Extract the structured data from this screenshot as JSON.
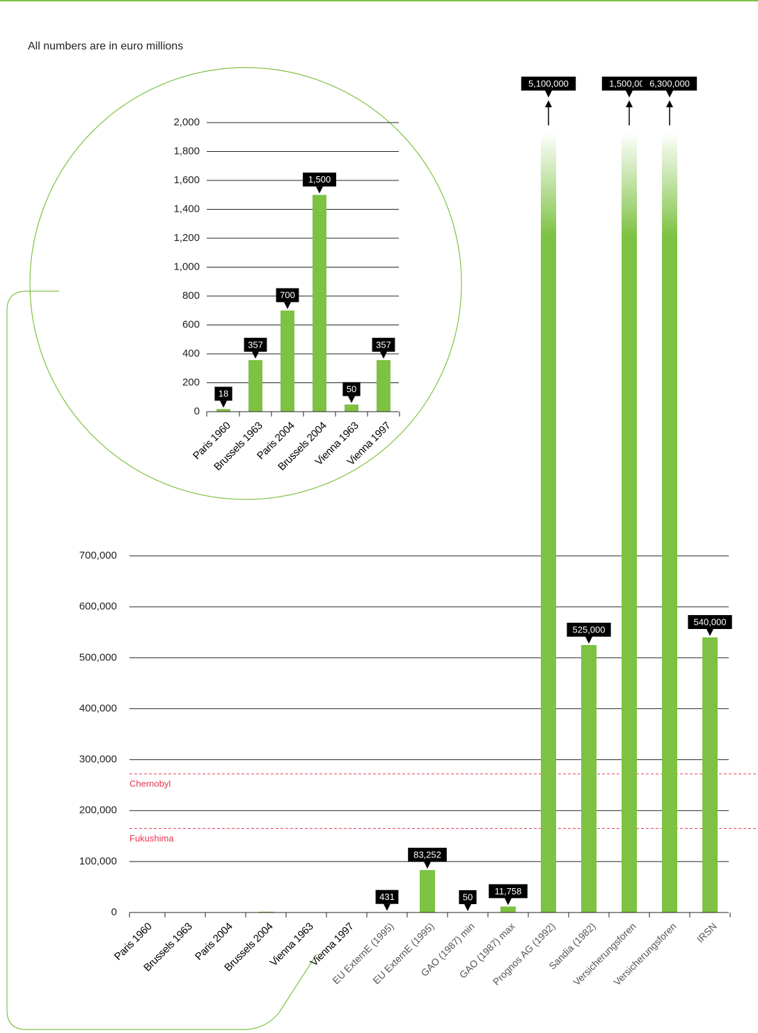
{
  "header": "All numbers are in euro millions",
  "chart_data": [
    {
      "type": "bar",
      "color": "#7dc242",
      "categories": [
        "Paris 1960",
        "Brussels 1963",
        "Paris 2004",
        "Brussels 2004",
        "Vienna 1963",
        "Vienna 1997"
      ],
      "values": [
        18,
        357,
        700,
        1500,
        50,
        357
      ],
      "value_labels": [
        "18",
        "357",
        "700",
        "1,500",
        "50",
        "357"
      ],
      "ylim": [
        0,
        2000
      ],
      "yticks": [
        0,
        200,
        400,
        600,
        800,
        {
          "value": 1000,
          "label": "1,000"
        },
        {
          "value": 1200,
          "label": "1,200"
        },
        {
          "value": 1400,
          "label": "1,400"
        },
        {
          "value": 1600,
          "label": "1,600"
        },
        {
          "value": 1800,
          "label": "1,800"
        },
        {
          "value": 2000,
          "label": "2,000"
        }
      ],
      "grid": true
    },
    {
      "type": "bar",
      "color": "#7dc242",
      "categories": [
        "Paris 1960",
        "Brussels 1963",
        "Paris 2004",
        "Brussels 2004",
        "Vienna 1963",
        "Vienna 1997",
        "EU ExternE (1995)",
        "EU ExternE (1995)",
        "GAO (1987) min",
        "GAO (1987) max",
        "Prognos AG (1992)",
        "Sandia (1982)",
        "Versicherungsforen",
        "Versicherungsforen",
        "IRSN"
      ],
      "values": [
        18,
        357,
        700,
        1500,
        50,
        357,
        431,
        83252,
        50,
        11758,
        5100000,
        525000,
        1500000,
        6300000,
        540000
      ],
      "value_labels": [
        null,
        null,
        null,
        null,
        null,
        null,
        "431",
        "83,252",
        "50",
        "11,758",
        "5,100,000",
        "525,000",
        "1,500,000",
        "6,300,000",
        "540,000"
      ],
      "ylim": [
        0,
        700000
      ],
      "yticks": [
        0,
        {
          "value": 100000,
          "label": "100,000"
        },
        {
          "value": 200000,
          "label": "200,000"
        },
        {
          "value": 300000,
          "label": "300,000"
        },
        {
          "value": 400000,
          "label": "400,000"
        },
        {
          "value": 500000,
          "label": "500,000"
        },
        {
          "value": 600000,
          "label": "600,000"
        },
        {
          "value": 700000,
          "label": "700,000"
        }
      ],
      "grid": true,
      "reference_lines": [
        {
          "label": "Chernobyl",
          "value": 272000,
          "color": "#e8344e"
        },
        {
          "label": "Fukushima",
          "value": 165000,
          "color": "#e8344e"
        }
      ]
    }
  ]
}
